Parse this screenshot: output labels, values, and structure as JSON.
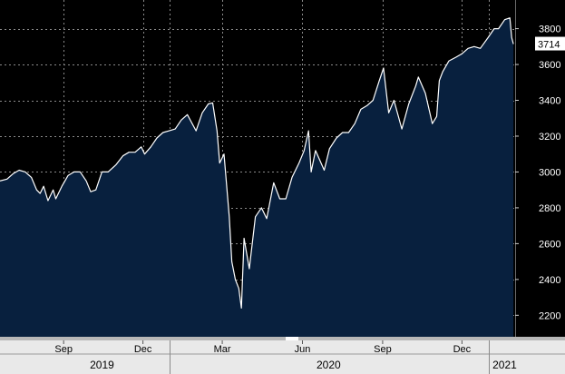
{
  "chart_data": {
    "type": "area",
    "title": "",
    "xlabel": "",
    "ylabel": "",
    "ylim": [
      2080,
      3960
    ],
    "xlim": [
      "2019-06-20",
      "2021-01-31"
    ],
    "y_ticks": [
      2200,
      2400,
      2600,
      2800,
      3000,
      3200,
      3400,
      3600,
      3800
    ],
    "x_ticks": [
      {
        "label": "Sep",
        "date": "2019-09-01"
      },
      {
        "label": "Dec",
        "date": "2019-12-01"
      },
      {
        "label": "Mar",
        "date": "2020-03-01"
      },
      {
        "label": "Jun",
        "date": "2020-06-01"
      },
      {
        "label": "Sep",
        "date": "2020-09-01"
      },
      {
        "label": "Dec",
        "date": "2020-12-01"
      }
    ],
    "year_labels": [
      {
        "label": "2019",
        "date": "2019-10-15"
      },
      {
        "label": "2020",
        "date": "2020-07-01"
      },
      {
        "label": "2021",
        "date": "2021-01-19"
      }
    ],
    "year_separators": [
      "2020-01-01",
      "2021-01-01"
    ],
    "grid": true,
    "last_value_label": "3714",
    "line_color": "#ffffff",
    "fill_color": "#08203e",
    "series": [
      {
        "x": [
          "2019-06-20",
          "2019-06-28",
          "2019-07-05",
          "2019-07-12",
          "2019-07-19",
          "2019-07-26",
          "2019-08-01",
          "2019-08-05",
          "2019-08-09",
          "2019-08-14",
          "2019-08-20",
          "2019-08-23",
          "2019-08-30",
          "2019-09-06",
          "2019-09-13",
          "2019-09-20",
          "2019-09-27",
          "2019-10-02",
          "2019-10-08",
          "2019-10-15",
          "2019-10-22",
          "2019-10-31",
          "2019-11-08",
          "2019-11-15",
          "2019-11-22",
          "2019-11-29",
          "2019-12-03",
          "2019-12-10",
          "2019-12-17",
          "2019-12-24",
          "2019-12-31",
          "2020-01-07",
          "2020-01-14",
          "2020-01-21",
          "2020-01-31",
          "2020-02-07",
          "2020-02-14",
          "2020-02-19",
          "2020-02-24",
          "2020-02-27",
          "2020-03-03",
          "2020-03-09",
          "2020-03-12",
          "2020-03-16",
          "2020-03-20",
          "2020-03-23",
          "2020-03-26",
          "2020-04-01",
          "2020-04-08",
          "2020-04-15",
          "2020-04-21",
          "2020-04-29",
          "2020-05-06",
          "2020-05-13",
          "2020-05-20",
          "2020-05-28",
          "2020-06-03",
          "2020-06-08",
          "2020-06-11",
          "2020-06-16",
          "2020-06-26",
          "2020-07-02",
          "2020-07-10",
          "2020-07-17",
          "2020-07-24",
          "2020-07-31",
          "2020-08-07",
          "2020-08-14",
          "2020-08-21",
          "2020-08-28",
          "2020-09-02",
          "2020-09-08",
          "2020-09-14",
          "2020-09-23",
          "2020-10-01",
          "2020-10-09",
          "2020-10-12",
          "2020-10-20",
          "2020-10-28",
          "2020-11-02",
          "2020-11-05",
          "2020-11-09",
          "2020-11-16",
          "2020-11-24",
          "2020-12-01",
          "2020-12-08",
          "2020-12-15",
          "2020-12-22",
          "2020-12-31",
          "2021-01-07",
          "2021-01-12",
          "2021-01-19",
          "2021-01-25",
          "2021-01-27",
          "2021-01-29"
        ],
        "values": [
          2950,
          2960,
          2990,
          3010,
          3000,
          2970,
          2900,
          2880,
          2920,
          2840,
          2900,
          2850,
          2920,
          2980,
          3000,
          3000,
          2950,
          2890,
          2900,
          3000,
          3000,
          3040,
          3090,
          3110,
          3110,
          3140,
          3100,
          3140,
          3190,
          3220,
          3230,
          3240,
          3290,
          3320,
          3230,
          3330,
          3380,
          3386,
          3230,
          3050,
          3100,
          2750,
          2500,
          2400,
          2350,
          2240,
          2630,
          2460,
          2750,
          2800,
          2740,
          2940,
          2850,
          2850,
          2970,
          3050,
          3120,
          3230,
          3000,
          3120,
          3010,
          3130,
          3190,
          3220,
          3220,
          3270,
          3350,
          3370,
          3400,
          3508,
          3580,
          3330,
          3400,
          3240,
          3380,
          3480,
          3530,
          3440,
          3270,
          3310,
          3510,
          3560,
          3620,
          3640,
          3660,
          3690,
          3700,
          3690,
          3750,
          3800,
          3800,
          3850,
          3860,
          3750,
          3714
        ]
      }
    ]
  }
}
